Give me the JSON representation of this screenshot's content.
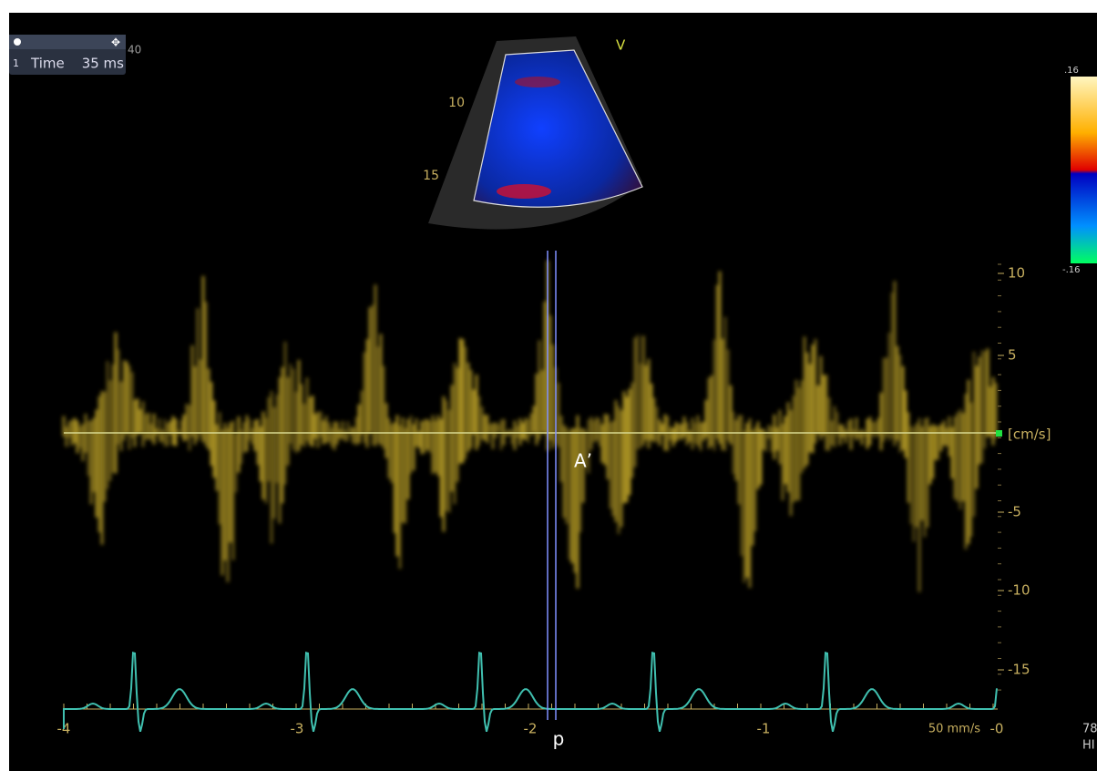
{
  "info_box": {
    "index": "1",
    "label": "Time",
    "value": "35 ms",
    "depth": "40"
  },
  "sector": {
    "mode": "V",
    "depth_labels": [
      "10",
      "15"
    ]
  },
  "color_bar": {
    "max": ".16",
    "min": "-.16"
  },
  "velocity_axis": {
    "labels": [
      "10",
      "5",
      "-5",
      "-10",
      "-15"
    ],
    "unit": "[cm/s]"
  },
  "time_axis": {
    "labels": [
      "-4",
      "-3",
      "-2",
      "-1",
      "-0"
    ],
    "sweep": "50 mm/s"
  },
  "annotations": {
    "wave": "A’",
    "marker": "p"
  },
  "side": {
    "rate": "78",
    "hr": "HI"
  }
}
